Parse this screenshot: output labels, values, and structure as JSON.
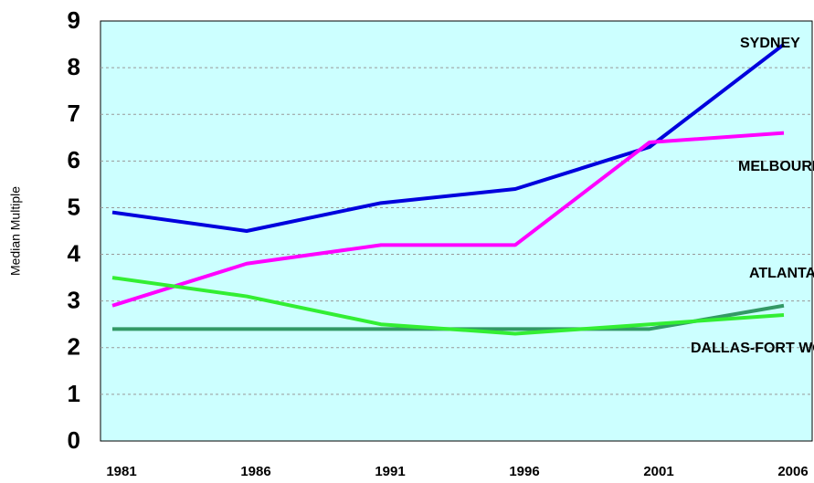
{
  "chart_data": {
    "type": "line",
    "y_label": "Median Multiple",
    "categories": [
      "1981",
      "1986",
      "1991",
      "1996",
      "2001",
      "2006"
    ],
    "series": [
      {
        "name": "SYDNEY",
        "color": "#0000dd",
        "values": [
          4.9,
          4.5,
          5.1,
          5.4,
          6.3,
          8.5
        ]
      },
      {
        "name": "MELBOURNE",
        "color": "#ff00ff",
        "values": [
          2.9,
          3.8,
          4.2,
          4.2,
          6.4,
          6.6
        ]
      },
      {
        "name": "DALLAS-FORT WORTH",
        "color": "#339966",
        "values": [
          2.4,
          2.4,
          2.4,
          2.4,
          2.4,
          2.9
        ]
      },
      {
        "name": "ATLANTA",
        "color": "#33ee33",
        "values": [
          3.5,
          3.1,
          2.5,
          2.3,
          2.5,
          2.7
        ]
      }
    ],
    "ylim": [
      0,
      9
    ],
    "yticks": [
      0,
      1,
      2,
      3,
      4,
      5,
      6,
      7,
      8,
      9
    ],
    "grid": true,
    "background": "#ccffff"
  }
}
